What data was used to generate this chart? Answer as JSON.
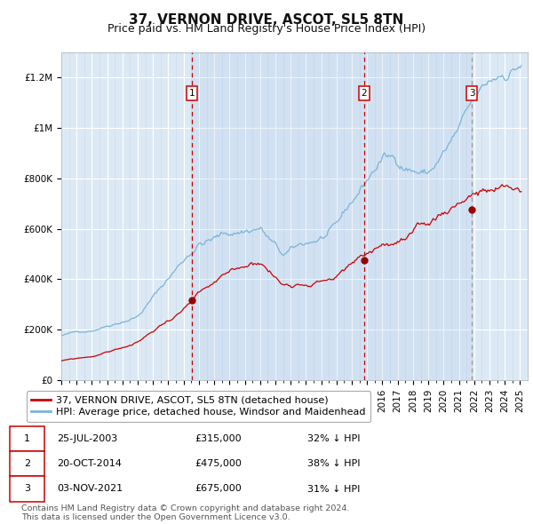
{
  "title": "37, VERNON DRIVE, ASCOT, SL5 8TN",
  "subtitle": "Price paid vs. HM Land Registry's House Price Index (HPI)",
  "ylim": [
    0,
    1300000
  ],
  "yticks": [
    0,
    200000,
    400000,
    600000,
    800000,
    1000000,
    1200000
  ],
  "ytick_labels": [
    "£0",
    "£200K",
    "£400K",
    "£600K",
    "£800K",
    "£1M",
    "£1.2M"
  ],
  "xlim_start": 1995.0,
  "xlim_end": 2025.5,
  "background_color": "#ffffff",
  "plot_bg_color": "#dce9f5",
  "grid_color": "#ffffff",
  "grid_minor_color": "#c8d8ec",
  "hpi_line_color": "#7ab4d8",
  "price_line_color": "#cc0000",
  "sale_marker_color": "#990000",
  "vline_color": "#cc0000",
  "vline3_color": "#999999",
  "sale_dates": [
    2003.56,
    2014.8,
    2021.84
  ],
  "sale_prices": [
    315000,
    475000,
    675000
  ],
  "sale_labels": [
    "1",
    "2",
    "3"
  ],
  "legend_price_label": "37, VERNON DRIVE, ASCOT, SL5 8TN (detached house)",
  "legend_hpi_label": "HPI: Average price, detached house, Windsor and Maidenhead",
  "table_data": [
    [
      "1",
      "25-JUL-2003",
      "£315,000",
      "32% ↓ HPI"
    ],
    [
      "2",
      "20-OCT-2014",
      "£475,000",
      "38% ↓ HPI"
    ],
    [
      "3",
      "03-NOV-2021",
      "£675,000",
      "31% ↓ HPI"
    ]
  ],
  "footer_text": "Contains HM Land Registry data © Crown copyright and database right 2024.\nThis data is licensed under the Open Government Licence v3.0.",
  "title_fontsize": 11,
  "subtitle_fontsize": 9,
  "axis_fontsize": 7.5,
  "legend_fontsize": 8,
  "table_fontsize": 8
}
